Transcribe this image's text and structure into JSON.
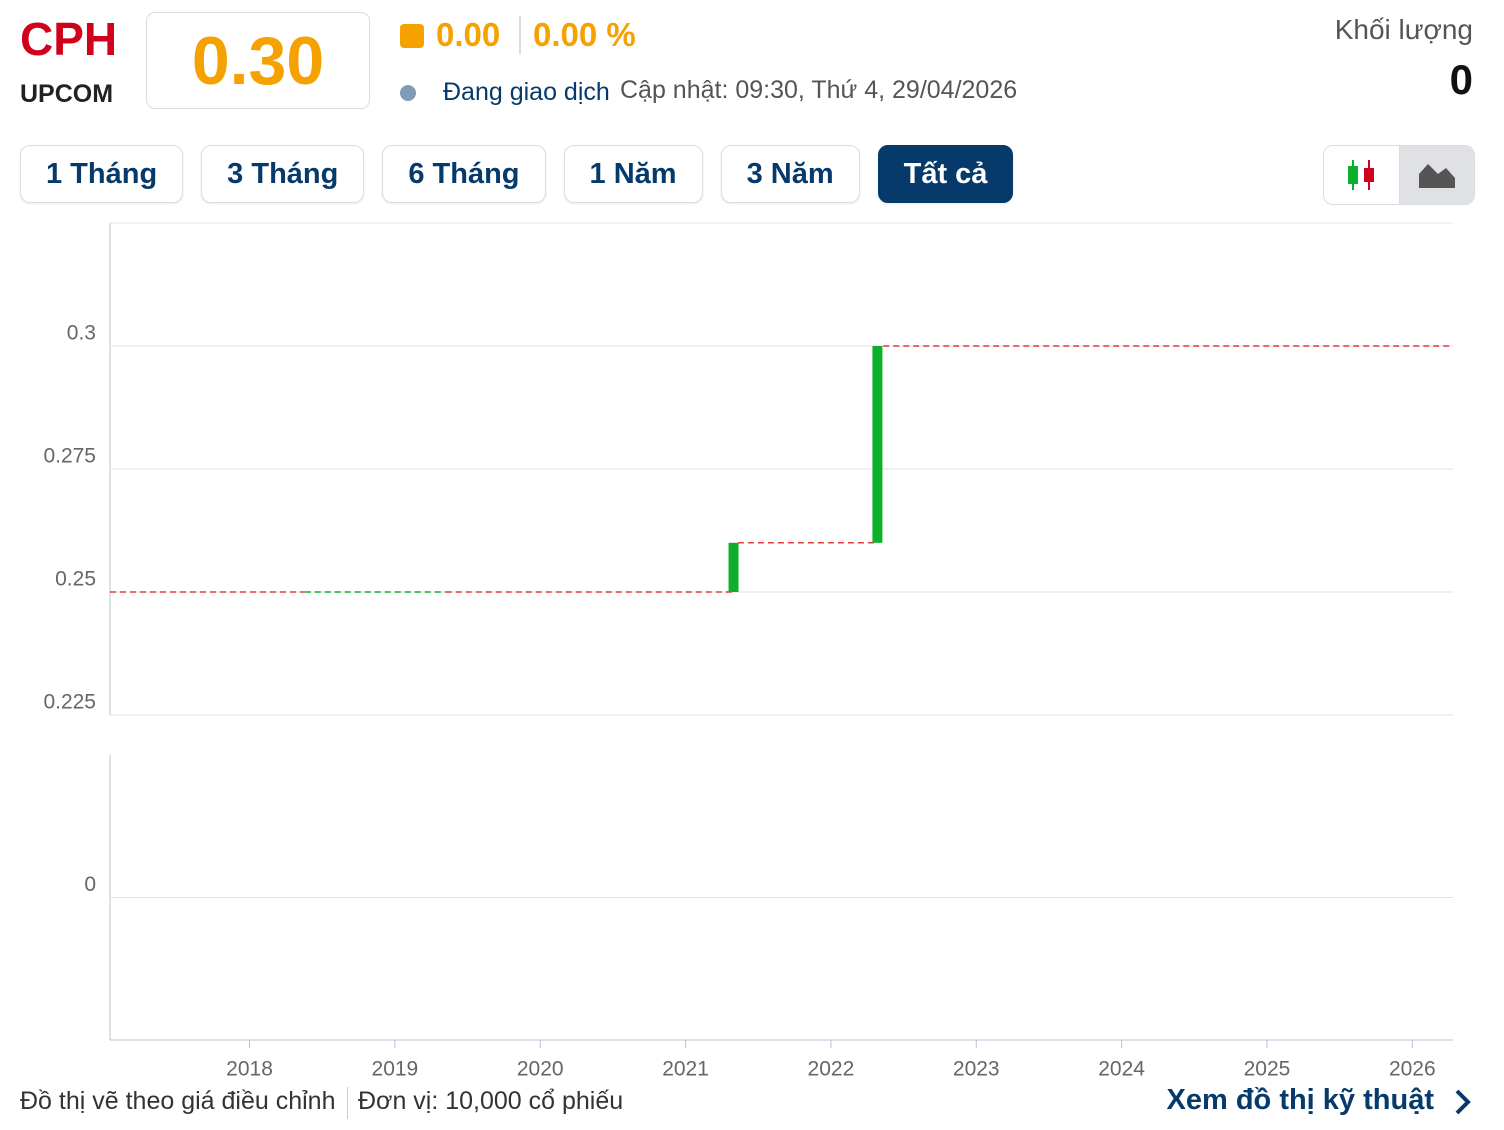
{
  "header": {
    "ticker": "CPH",
    "exchange": "UPCOM",
    "price": "0.30",
    "change": "0.00",
    "change_pct": "0.00 %",
    "status": "Đang giao dịch",
    "updated": "Cập nhật: 09:30, Thứ 4, 29/04/2026",
    "volume_label": "Khối lượng",
    "volume": "0"
  },
  "ranges": [
    "1 Tháng",
    "3 Tháng",
    "6 Tháng",
    "1 Năm",
    "3 Năm",
    "Tất cả"
  ],
  "active_range": 5,
  "chart_data": {
    "type": "candlestick",
    "x": [
      2017.04,
      2018.38,
      2019.35,
      2021.33,
      2021.36,
      2022.32,
      2022.36
    ],
    "open": [
      0.25,
      0.25,
      0.25,
      0.25,
      0.26,
      0.26,
      0.3
    ],
    "close": [
      0.25,
      0.25,
      0.25,
      0.26,
      0.26,
      0.3,
      0.3
    ],
    "colors": [
      "#e03c3c",
      "#0db02b",
      "#e03c3c",
      "#0db02b",
      "#e03c3c",
      "#0db02b",
      "#e03c3c"
    ],
    "xlim": [
      2017.04,
      2026.28
    ],
    "xticks": [
      2018,
      2019,
      2020,
      2021,
      2022,
      2023,
      2024,
      2025,
      2026
    ],
    "ylim": [
      0.225,
      0.325
    ],
    "yticks": [
      0.225,
      0.25,
      0.275,
      0.3
    ],
    "y2lim": [
      -1,
      1
    ],
    "y2ticks": [
      0
    ],
    "grid": true
  },
  "footer": {
    "note": "Đồ thị vẽ theo giá điều chỉnh",
    "unit": "Đơn vị: 10,000 cổ phiếu",
    "link": "Xem đồ thị kỹ thuật"
  }
}
